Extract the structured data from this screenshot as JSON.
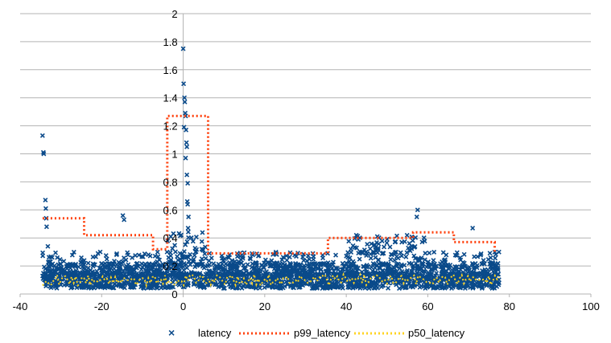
{
  "chart_data": {
    "type": "scatter",
    "title": "",
    "xlabel": "",
    "ylabel": "",
    "xlim": [
      -40,
      100
    ],
    "ylim": [
      0,
      2
    ],
    "x_ticks": [
      -40,
      -20,
      0,
      20,
      40,
      60,
      80,
      100
    ],
    "y_ticks": [
      0,
      0.2,
      0.4,
      0.6,
      0.8,
      1,
      1.2,
      1.4,
      1.6,
      1.8,
      2
    ],
    "x_tick_labels": [
      "-40",
      "-20",
      "0",
      "20",
      "40",
      "60",
      "80",
      "100"
    ],
    "y_tick_labels": [
      "0",
      "0.2",
      "0.4",
      "0.6",
      "0.8",
      "1",
      "1.2",
      "1.4",
      "1.6",
      "1.8",
      "2"
    ],
    "grid": "horizontal",
    "legend_position": "bottom",
    "colors": {
      "latency": "#0a4a8a",
      "p99_latency": "#ff420e",
      "p50_latency": "#ffd320",
      "grid": "#b3b3b3",
      "axis": "#b3b3b3"
    },
    "series": [
      {
        "name": "latency",
        "style": "markers-x",
        "description_points": [
          {
            "x": -34.5,
            "y": 1.13
          },
          {
            "x": -34.3,
            "y": 1.01
          },
          {
            "x": -34.2,
            "y": 1.0
          },
          {
            "x": -33.8,
            "y": 0.67
          },
          {
            "x": -33.7,
            "y": 0.61
          },
          {
            "x": -33.6,
            "y": 0.54
          },
          {
            "x": -33.5,
            "y": 0.48
          },
          {
            "x": -33.2,
            "y": 0.34
          },
          {
            "x": -14.8,
            "y": 0.56
          },
          {
            "x": -14.5,
            "y": 0.53
          },
          {
            "x": 0.0,
            "y": 1.75
          },
          {
            "x": 0.1,
            "y": 1.5
          },
          {
            "x": 0.3,
            "y": 1.4
          },
          {
            "x": 0.4,
            "y": 1.37
          },
          {
            "x": 0.5,
            "y": 1.29
          },
          {
            "x": 0.6,
            "y": 1.27
          },
          {
            "x": 0.2,
            "y": 1.19
          },
          {
            "x": 0.7,
            "y": 1.17
          },
          {
            "x": 0.8,
            "y": 1.08
          },
          {
            "x": 0.9,
            "y": 1.05
          },
          {
            "x": 0.6,
            "y": 0.97
          },
          {
            "x": 0.9,
            "y": 0.85
          },
          {
            "x": 1.1,
            "y": 0.79
          },
          {
            "x": 1.0,
            "y": 0.66
          },
          {
            "x": 1.1,
            "y": 0.64
          },
          {
            "x": 1.3,
            "y": 0.55
          },
          {
            "x": 1.2,
            "y": 0.47
          },
          {
            "x": 57.5,
            "y": 0.6
          },
          {
            "x": 57.3,
            "y": 0.55
          },
          {
            "x": 71.0,
            "y": 0.47
          }
        ],
        "bulk": {
          "x_range": [
            -34.5,
            77.5
          ],
          "y_range": [
            0.03,
            0.3
          ],
          "count": 2600
        }
      },
      {
        "name": "p99_latency",
        "style": "dotted-line",
        "x": [
          -34.5,
          -24.3,
          -24.3,
          -7.4,
          -7.4,
          -3.9,
          -3.9,
          6.1,
          6.1,
          35.5,
          35.5,
          56.4,
          56.4,
          66.4,
          66.4,
          76.4,
          76.4
        ],
        "y": [
          0.54,
          0.54,
          0.42,
          0.42,
          0.32,
          0.32,
          1.27,
          1.27,
          0.29,
          0.29,
          0.4,
          0.4,
          0.44,
          0.44,
          0.37,
          0.37,
          0.3
        ]
      },
      {
        "name": "p50_latency",
        "style": "dotted-line",
        "x": [
          -34.5,
          77.5
        ],
        "y": [
          0.1,
          0.1
        ],
        "jitter_range": [
          0.06,
          0.14
        ]
      }
    ],
    "legend": [
      "latency",
      "p99_latency",
      "p50_latency"
    ]
  }
}
